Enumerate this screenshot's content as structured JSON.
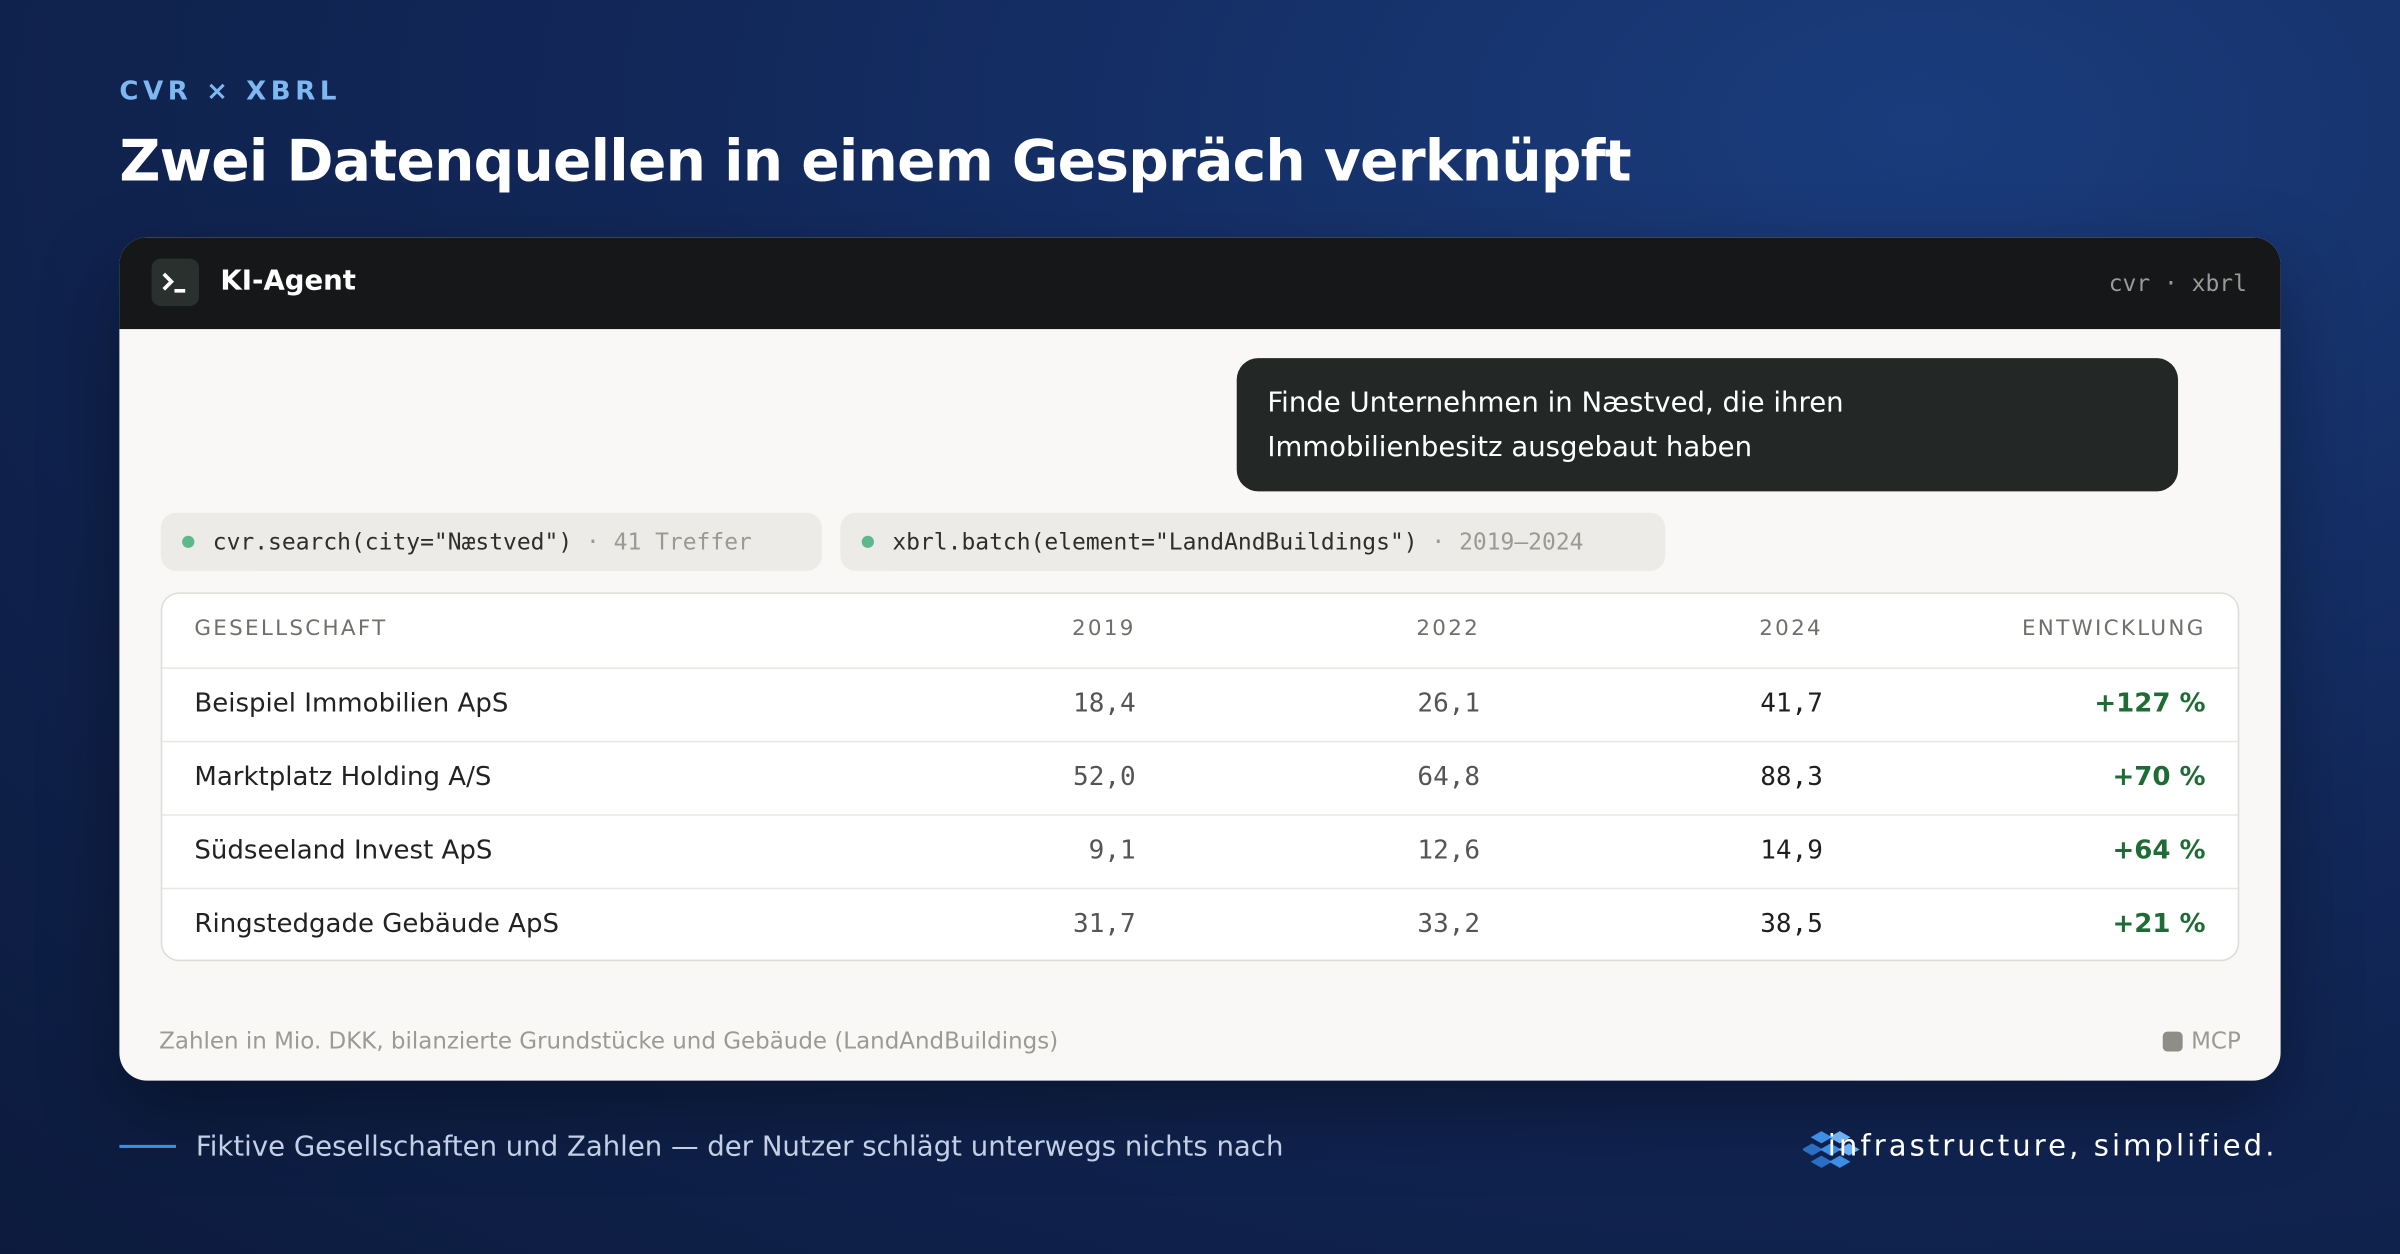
{
  "eyebrow": "CVR × XBRL",
  "title": "Zwei Datenquellen in einem Gespräch verknüpft",
  "window": {
    "title": "KI-Agent",
    "tags": "cvr · xbrl"
  },
  "message": "Finde Unternehmen in Næstved, die ihren Immobilienbesitz ausgebaut haben",
  "tool_calls": [
    {
      "call": "cvr.search(city=\"Næstved\")",
      "meta": "· 41 Treffer"
    },
    {
      "call": "xbrl.batch(element=\"LandAndBuildings\")",
      "meta": "· 2019–2024"
    }
  ],
  "table": {
    "headers": [
      "GESELLSCHAFT",
      "2019",
      "2022",
      "2024",
      "ENTWICKLUNG"
    ],
    "rows": [
      [
        "Beispiel Immobilien ApS",
        "18,4",
        "26,1",
        "41,7",
        "+127 %"
      ],
      [
        "Marktplatz Holding A/S",
        "52,0",
        "64,8",
        "88,3",
        "+70 %"
      ],
      [
        "Südseeland Invest ApS",
        "9,1",
        "12,6",
        "14,9",
        "+64 %"
      ],
      [
        "Ringstedgade Gebäude ApS",
        "31,7",
        "33,2",
        "38,5",
        "+21 %"
      ]
    ]
  },
  "footnote": "Zahlen in Mio. DKK, bilanzierte Grundstücke und Gebäude (LandAndBuildings)",
  "badge": "MCP",
  "footer": {
    "caption": "Fiktive Gesellschaften und Zahlen — der Nutzer schlägt unterwegs nichts nach",
    "brand": "infrastructure, simplified."
  }
}
